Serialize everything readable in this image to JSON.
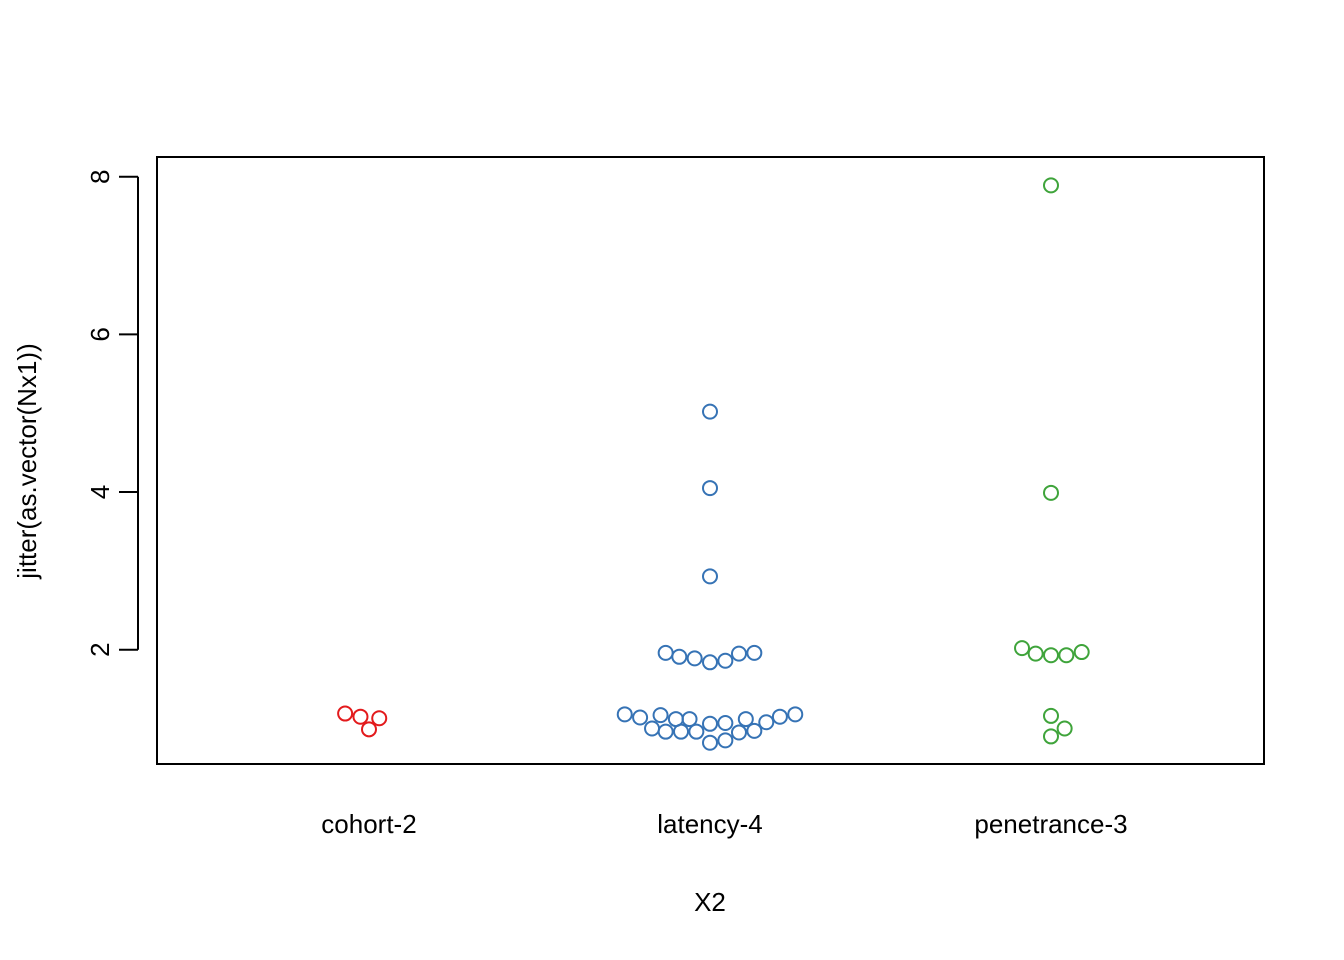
{
  "chart_data": {
    "type": "scatter",
    "xlabel": "X2",
    "ylabel": "jitter(as.vector(Nx1))",
    "categories": [
      "cohort-2",
      "latency-4",
      "penetrance-3"
    ],
    "ylim": [
      0.55,
      8.25
    ],
    "yticks": [
      2,
      4,
      6,
      8
    ],
    "grid": false,
    "legend": "none",
    "series": [
      {
        "category": "cohort-2",
        "color": "#e31a1c",
        "points": [
          {
            "x": -0.07,
            "y": 1.19
          },
          {
            "x": -0.025,
            "y": 1.15
          },
          {
            "x": 0.0,
            "y": 0.99
          },
          {
            "x": 0.03,
            "y": 1.13
          }
        ]
      },
      {
        "category": "latency-4",
        "color": "#3673b5",
        "points": [
          {
            "x": 0.0,
            "y": 5.02
          },
          {
            "x": 0.0,
            "y": 4.05
          },
          {
            "x": 0.0,
            "y": 2.93
          },
          {
            "x": -0.13,
            "y": 1.96
          },
          {
            "x": -0.09,
            "y": 1.91
          },
          {
            "x": -0.045,
            "y": 1.89
          },
          {
            "x": 0.0,
            "y": 1.84
          },
          {
            "x": 0.045,
            "y": 1.86
          },
          {
            "x": 0.085,
            "y": 1.95
          },
          {
            "x": 0.13,
            "y": 1.96
          },
          {
            "x": -0.25,
            "y": 1.18
          },
          {
            "x": -0.205,
            "y": 1.14
          },
          {
            "x": -0.145,
            "y": 1.17
          },
          {
            "x": -0.1,
            "y": 1.12
          },
          {
            "x": -0.06,
            "y": 1.12
          },
          {
            "x": 0.0,
            "y": 1.06
          },
          {
            "x": 0.045,
            "y": 1.07
          },
          {
            "x": 0.105,
            "y": 1.12
          },
          {
            "x": 0.165,
            "y": 1.08
          },
          {
            "x": 0.205,
            "y": 1.15
          },
          {
            "x": 0.25,
            "y": 1.18
          },
          {
            "x": -0.17,
            "y": 1.0
          },
          {
            "x": -0.13,
            "y": 0.96
          },
          {
            "x": -0.085,
            "y": 0.96
          },
          {
            "x": -0.04,
            "y": 0.96
          },
          {
            "x": 0.085,
            "y": 0.95
          },
          {
            "x": 0.13,
            "y": 0.97
          },
          {
            "x": 0.0,
            "y": 0.82
          },
          {
            "x": 0.045,
            "y": 0.85
          }
        ]
      },
      {
        "category": "penetrance-3",
        "color": "#3fa43b",
        "points": [
          {
            "x": 0.0,
            "y": 7.89
          },
          {
            "x": 0.0,
            "y": 3.99
          },
          {
            "x": -0.085,
            "y": 2.02
          },
          {
            "x": -0.045,
            "y": 1.95
          },
          {
            "x": 0.0,
            "y": 1.93
          },
          {
            "x": 0.045,
            "y": 1.93
          },
          {
            "x": 0.09,
            "y": 1.97
          },
          {
            "x": 0.0,
            "y": 1.16
          },
          {
            "x": 0.04,
            "y": 1.0
          },
          {
            "x": 0.0,
            "y": 0.9
          }
        ]
      }
    ]
  }
}
